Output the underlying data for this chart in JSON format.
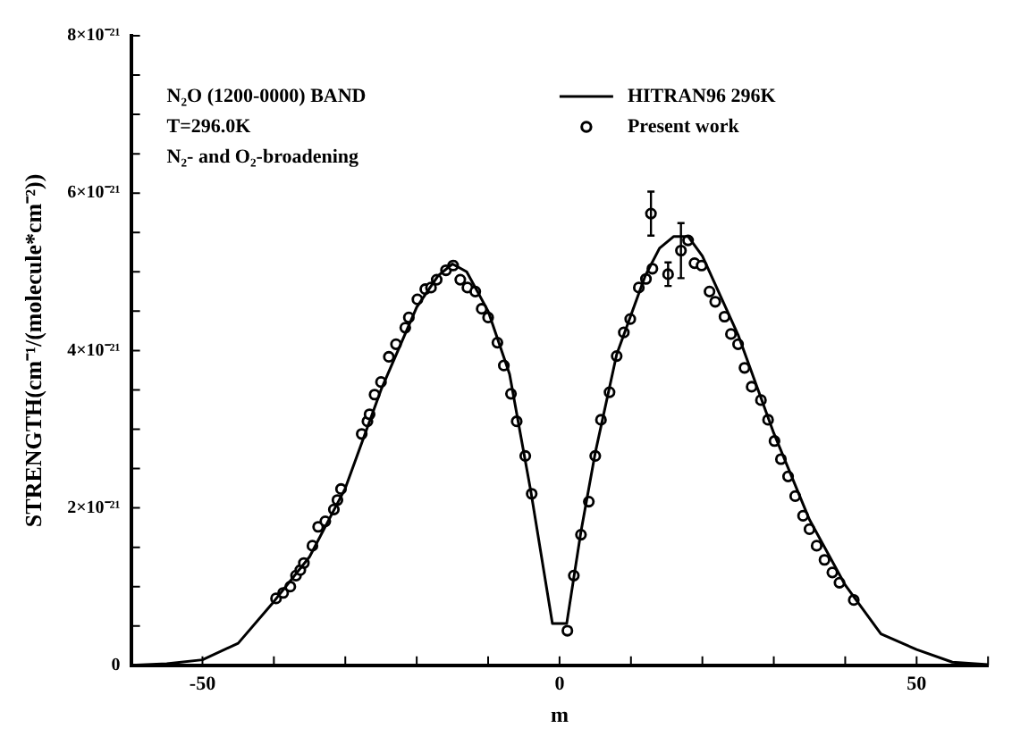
{
  "chart_data": {
    "type": "line",
    "xlabel": "m",
    "ylabel": "STRENGTH(cm⁻¹/(molecule*cm⁻²))",
    "annotations": [
      "N₂O (1200-0000) BAND",
      "T=296.0K",
      "N₂- and O₂-broadening"
    ],
    "xlim": [
      -60,
      60
    ],
    "xticks": [
      {
        "value": -60,
        "label": null
      },
      -50,
      {
        "value": -40,
        "label": null
      },
      {
        "value": -30,
        "label": null
      },
      {
        "value": -20,
        "label": null
      },
      {
        "value": -10,
        "label": null
      },
      0,
      {
        "value": 10,
        "label": null
      },
      {
        "value": 20,
        "label": null
      },
      {
        "value": 30,
        "label": null
      },
      {
        "value": 40,
        "label": null
      },
      50,
      {
        "value": 60,
        "label": null
      }
    ],
    "ylim": [
      0,
      8e-21
    ],
    "yticks": [
      {
        "value": 0,
        "label": "0"
      },
      {
        "value": 5e-22,
        "label": null
      },
      {
        "value": 1e-21,
        "label": null
      },
      {
        "value": 1.5e-21,
        "label": null
      },
      {
        "value": 2e-21,
        "label": "2×10⁻²¹"
      },
      {
        "value": 2.5e-21,
        "label": null
      },
      {
        "value": 3e-21,
        "label": null
      },
      {
        "value": 3.5e-21,
        "label": null
      },
      {
        "value": 4e-21,
        "label": "4×10⁻²¹"
      },
      {
        "value": 4.5e-21,
        "label": null
      },
      {
        "value": 5e-21,
        "label": null
      },
      {
        "value": 5.5e-21,
        "label": null
      },
      {
        "value": 6e-21,
        "label": "6×10⁻²¹"
      },
      {
        "value": 6.5e-21,
        "label": null
      },
      {
        "value": 7e-21,
        "label": null
      },
      {
        "value": 7.5e-21,
        "label": null
      },
      {
        "value": 8e-21,
        "label": "8×10⁻²¹"
      }
    ],
    "grid": false,
    "legend": "top right",
    "series": [
      {
        "name": "HITRAN96 296K",
        "type": "line",
        "color": "#000000",
        "marker": "none",
        "line_style": "solid",
        "x": [
          -60,
          -55,
          -50,
          -45,
          -40,
          -35,
          -30,
          -25,
          -20,
          -17,
          -15,
          -13,
          -10,
          -7,
          -4,
          -1,
          1,
          3,
          5,
          8,
          10,
          12,
          14,
          16,
          18,
          20,
          25,
          30,
          35,
          40,
          45,
          50,
          55,
          60
        ],
        "values": [
          0,
          2e-23,
          7e-23,
          2.8e-22,
          8.1e-22,
          1.38e-21,
          2.25e-21,
          3.5e-21,
          4.55e-21,
          4.95e-21,
          5.1e-21,
          5e-21,
          4.5e-21,
          3.7e-21,
          2.2e-21,
          5.3e-22,
          5.3e-22,
          1.7e-21,
          2.7e-21,
          3.95e-21,
          4.45e-21,
          4.95e-21,
          5.3e-21,
          5.45e-21,
          5.45e-21,
          5.2e-21,
          4.2e-21,
          2.95e-21,
          1.85e-21,
          1.02e-21,
          4e-22,
          2e-22,
          4e-23,
          1e-23
        ]
      },
      {
        "name": "Present work",
        "type": "scatter",
        "color": "#000000",
        "marker": "circle",
        "x": [
          -39.7,
          -38.7,
          -37.7,
          -36.9,
          -36.3,
          -35.8,
          -34.6,
          -33.8,
          -32.8,
          -31.6,
          -31.1,
          -30.6,
          -27.7,
          -26.9,
          -26.6,
          -25.9,
          -25,
          -23.9,
          -22.9,
          -21.6,
          -21.1,
          -19.9,
          -18.8,
          -18,
          -17.2,
          -15.9,
          -14.9,
          -13.9,
          -12.9,
          -11.8,
          -10.9,
          -10,
          -8.7,
          -7.8,
          -6.8,
          -6,
          -4.8,
          -3.9,
          1.1,
          2,
          3,
          4.1,
          5,
          5.8,
          7,
          8,
          9,
          9.9,
          11.1,
          12.1,
          12.8,
          13,
          15.2,
          17,
          18,
          18.9,
          19.9,
          21,
          21.8,
          23.1,
          24,
          25,
          25.9,
          26.9,
          28.2,
          29.2,
          30.1,
          31,
          32,
          33,
          34.1,
          35,
          36,
          37.1,
          38.2,
          39.2,
          41.2
        ],
        "values": [
          8.5e-22,
          9.2e-22,
          1e-21,
          1.14e-21,
          1.21e-21,
          1.3e-21,
          1.52e-21,
          1.76e-21,
          1.83e-21,
          1.98e-21,
          2.1e-21,
          2.24e-21,
          2.94e-21,
          3.1e-21,
          3.19e-21,
          3.44e-21,
          3.6e-21,
          3.92e-21,
          4.08e-21,
          4.29e-21,
          4.42e-21,
          4.65e-21,
          4.78e-21,
          4.8e-21,
          4.9e-21,
          5.02e-21,
          5.08e-21,
          4.9e-21,
          4.8e-21,
          4.75e-21,
          4.53e-21,
          4.42e-21,
          4.1e-21,
          3.81e-21,
          3.45e-21,
          3.1e-21,
          2.66e-21,
          2.18e-21,
          4.4e-22,
          1.14e-21,
          1.66e-21,
          2.08e-21,
          2.66e-21,
          3.12e-21,
          3.47e-21,
          3.93e-21,
          4.23e-21,
          4.4e-21,
          4.8e-21,
          4.91e-21,
          5.74e-21,
          5.04e-21,
          4.97e-21,
          5.27e-21,
          5.4e-21,
          5.11e-21,
          5.08e-21,
          4.75e-21,
          4.62e-21,
          4.43e-21,
          4.21e-21,
          4.08e-21,
          3.78e-21,
          3.54e-21,
          3.37e-21,
          3.12e-21,
          2.85e-21,
          2.62e-21,
          2.4e-21,
          2.15e-21,
          1.9e-21,
          1.73e-21,
          1.52e-21,
          1.34e-21,
          1.18e-21,
          1.05e-21,
          8.3e-22
        ],
        "errors": [
          null,
          null,
          null,
          null,
          null,
          null,
          null,
          null,
          null,
          null,
          null,
          null,
          null,
          null,
          null,
          null,
          null,
          null,
          null,
          null,
          null,
          null,
          null,
          null,
          null,
          null,
          null,
          null,
          null,
          null,
          null,
          null,
          null,
          null,
          null,
          null,
          null,
          null,
          null,
          null,
          null,
          null,
          null,
          null,
          null,
          null,
          null,
          null,
          null,
          null,
          2.8e-22,
          null,
          1.5e-22,
          3.5e-22,
          null,
          null,
          null,
          null,
          null,
          null,
          null,
          null,
          null,
          null,
          null,
          null,
          null,
          null,
          null,
          null,
          null,
          null,
          null,
          null,
          null,
          null,
          null
        ]
      }
    ]
  }
}
